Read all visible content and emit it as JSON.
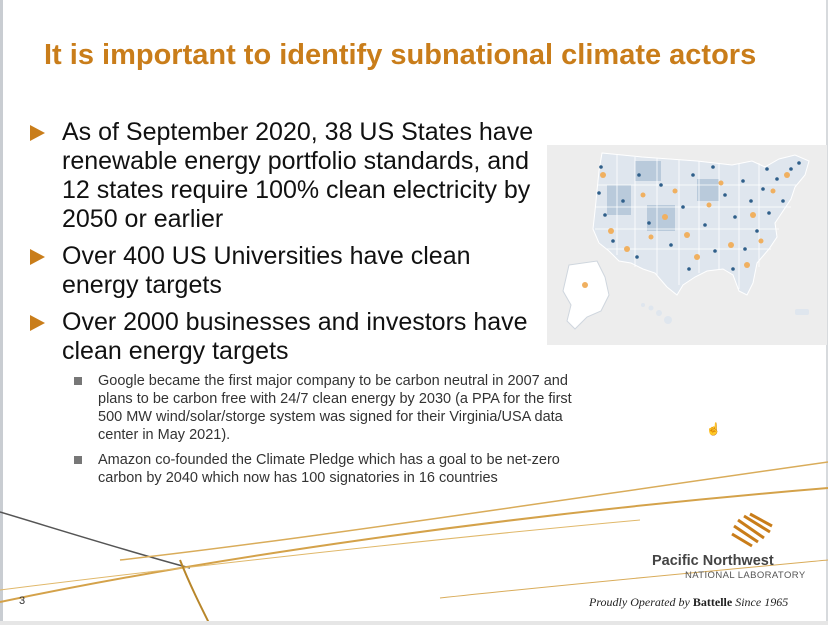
{
  "slide": {
    "title": "It is important to identify subnational climate actors",
    "bullets": [
      "As of September 2020, 38 US States have renewable energy portfolio standards, and 12 states require 100% clean electricity by 2050 or earlier",
      "Over 400 US Universities have clean energy targets",
      "Over 2000 businesses and investors have clean energy targets"
    ],
    "sub_bullets": [
      "Google became the first major company to be carbon neutral in 2007 and plans to be carbon free with 24/7 clean energy by 2030 (a PPA for the first 500 MW wind/solar/storge system was signed for their Virginia/USA data center in May 2021).",
      "Amazon co-founded the Climate Pledge which has a goal to be net-zero carbon by 2040 which now has 100 signatories in 16 countries"
    ],
    "page_number": "3"
  },
  "footer": {
    "logo_name": "Pacific Northwest",
    "logo_sub": "NATIONAL LABORATORY",
    "tagline_pre": "Proudly Operated by",
    "tagline_brand": "Battelle",
    "tagline_post": "Since 1965"
  },
  "colors": {
    "accent": "#c97d1a",
    "map_state": "#dfe6ee",
    "map_highlight": "#b9cadb",
    "map_dot_blue": "#2f5f8a",
    "map_dot_orange": "#f0b060"
  },
  "icons": {
    "bullet": "orange-triangle-arrow-icon",
    "sub_bullet": "gray-square-icon",
    "cursor": "hand-cursor-icon",
    "logo": "pnnl-logo-icon"
  }
}
